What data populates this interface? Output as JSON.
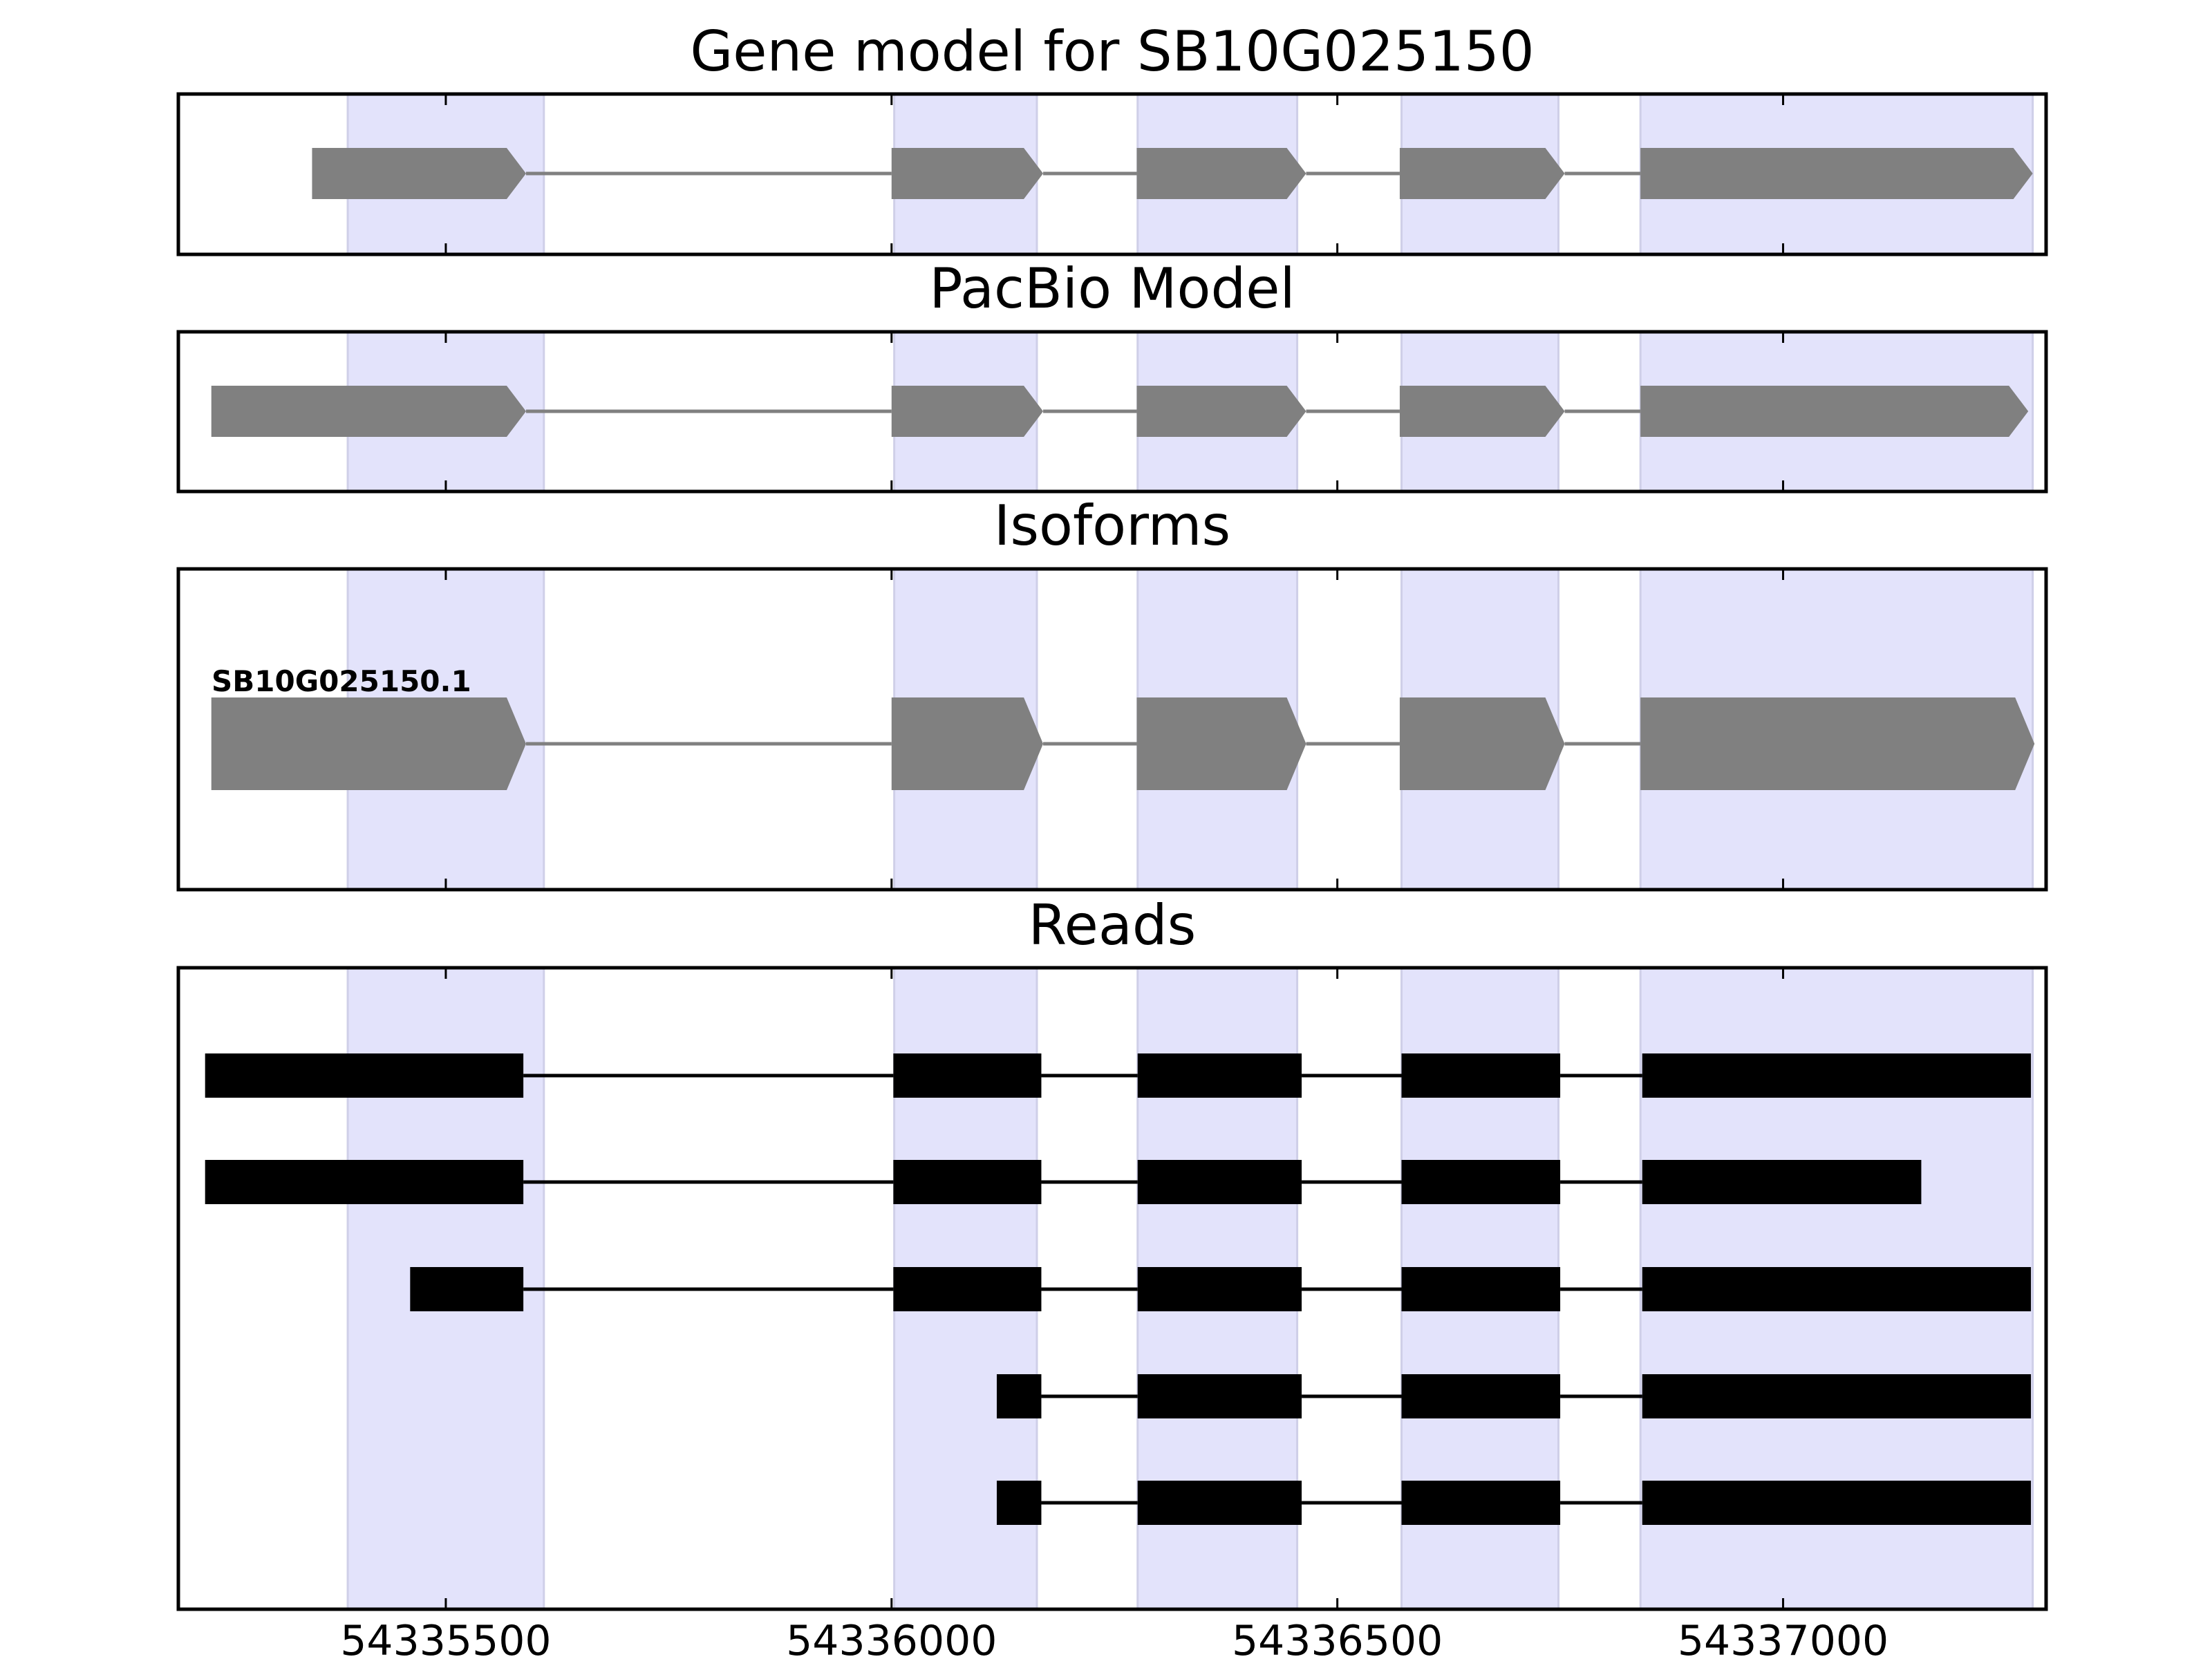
{
  "figure": {
    "panels": [
      {
        "id": "gene-model",
        "title": "Gene model for SB10G025150",
        "style": "arrow",
        "label": "",
        "tracks": [
          {
            "exons": [
              [
                54335350,
                54335590
              ],
              [
                54336000,
                54336170
              ],
              [
                54336275,
                54336465
              ],
              [
                54336570,
                54336755
              ],
              [
                54336840,
                54337280
              ]
            ]
          }
        ]
      },
      {
        "id": "pacbio-model",
        "title": "PacBio Model",
        "style": "arrow",
        "label": "",
        "tracks": [
          {
            "exons": [
              [
                54335237,
                54335590
              ],
              [
                54336000,
                54336170
              ],
              [
                54336275,
                54336465
              ],
              [
                54336570,
                54336755
              ],
              [
                54336840,
                54337275
              ]
            ]
          }
        ]
      },
      {
        "id": "isoforms",
        "title": "Isoforms",
        "style": "arrow",
        "label": "SB10G025150.1",
        "tracks": [
          {
            "exons": [
              [
                54335237,
                54335590
              ],
              [
                54336000,
                54336170
              ],
              [
                54336275,
                54336465
              ],
              [
                54336570,
                54336755
              ],
              [
                54336840,
                54337282
              ]
            ]
          }
        ]
      },
      {
        "id": "reads",
        "title": "Reads",
        "style": "block",
        "label": "",
        "tracks": [
          {
            "exons": [
              [
                54335230,
                54335587
              ],
              [
                54336002,
                54336168
              ],
              [
                54336276,
                54336460
              ],
              [
                54336572,
                54336750
              ],
              [
                54336842,
                54337278
              ]
            ]
          },
          {
            "exons": [
              [
                54335230,
                54335587
              ],
              [
                54336002,
                54336168
              ],
              [
                54336276,
                54336460
              ],
              [
                54336572,
                54336750
              ],
              [
                54336842,
                54337155
              ]
            ]
          },
          {
            "exons": [
              [
                54335460,
                54335587
              ],
              [
                54336002,
                54336168
              ],
              [
                54336276,
                54336460
              ],
              [
                54336572,
                54336750
              ],
              [
                54336842,
                54337278
              ]
            ]
          },
          {
            "exons": [
              [
                54336118,
                54336168
              ],
              [
                54336276,
                54336460
              ],
              [
                54336572,
                54336750
              ],
              [
                54336842,
                54337278
              ]
            ]
          },
          {
            "exons": [
              [
                54336118,
                54336168
              ],
              [
                54336276,
                54336460
              ],
              [
                54336572,
                54336750
              ],
              [
                54336842,
                54337278
              ]
            ]
          }
        ]
      }
    ],
    "highlight_regions": [
      [
        54335390,
        54335610
      ],
      [
        54336003,
        54336163
      ],
      [
        54336276,
        54336455
      ],
      [
        54336572,
        54336748
      ],
      [
        54336840,
        54337280
      ]
    ],
    "x_axis": {
      "range": [
        54335200,
        54337295
      ],
      "ticks": [
        54335500,
        54336000,
        54336500,
        54337000
      ]
    },
    "colors": {
      "highlight_fill": "#e3e3fb",
      "highlight_edge": "#cfcfe8",
      "model_fill": "#808080",
      "model_line": "#808080",
      "read_fill": "#000000",
      "read_line": "#000000"
    }
  }
}
